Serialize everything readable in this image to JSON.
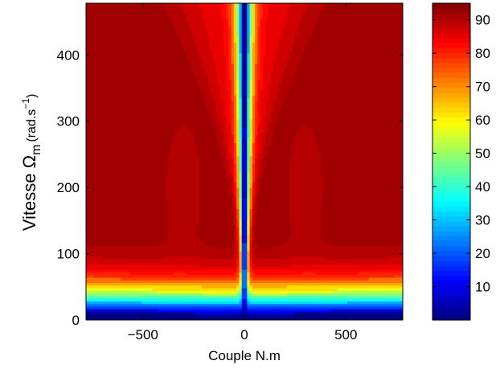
{
  "chart_data": {
    "type": "heatmap",
    "title": "",
    "xlabel": "Couple N.m",
    "ylabel": {
      "main": "Vitesse Ω",
      "subscript": "m",
      "unit_open": "(rad.s",
      "unit_sup": "−1",
      "unit_close": ")"
    },
    "xlim": [
      -780,
      780
    ],
    "ylim": [
      0,
      478
    ],
    "x_ticks": [
      {
        "value": -500,
        "label": "−500"
      },
      {
        "value": 0,
        "label": "0"
      },
      {
        "value": 500,
        "label": "500"
      }
    ],
    "y_ticks": [
      {
        "value": 0,
        "label": "0"
      },
      {
        "value": 100,
        "label": "100"
      },
      {
        "value": 200,
        "label": "200"
      },
      {
        "value": 300,
        "label": "300"
      },
      {
        "value": 400,
        "label": "400"
      }
    ],
    "colorbar": {
      "min": 0,
      "max": 95,
      "colormap": "jet",
      "ticks": [
        {
          "value": 10,
          "label": "10"
        },
        {
          "value": 20,
          "label": "20"
        },
        {
          "value": 30,
          "label": "30"
        },
        {
          "value": 40,
          "label": "40"
        },
        {
          "value": 50,
          "label": "50"
        },
        {
          "value": 60,
          "label": "60"
        },
        {
          "value": 70,
          "label": "70"
        },
        {
          "value": 80,
          "label": "80"
        },
        {
          "value": 90,
          "label": "90"
        }
      ]
    },
    "grid": false,
    "description_of_field": "efficiency map; values near 0 along torque=0 axis and at low speed, rising to ~93 at high speed and large torque",
    "contour_levels": [
      2.5,
      7.5,
      12.5,
      17.5,
      22.5,
      27.5,
      32.5,
      37.5,
      42.5,
      47.5,
      52.5,
      57.5,
      62.5,
      67.5,
      72.5,
      77.5,
      80,
      82.5,
      85,
      87.5,
      90,
      92
    ]
  }
}
